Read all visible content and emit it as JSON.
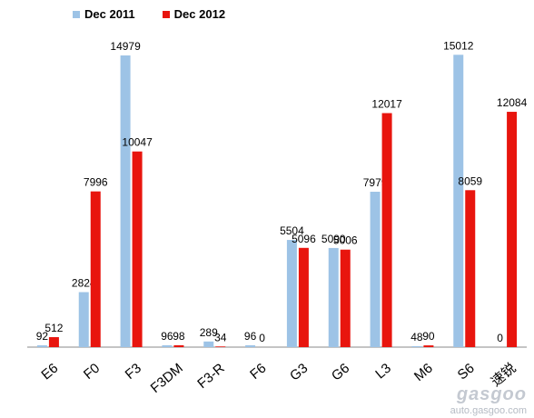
{
  "chart_data": {
    "type": "bar",
    "title": "",
    "xlabel": "",
    "ylabel": "",
    "ylim": [
      0,
      16000
    ],
    "grid": false,
    "legend_position": "top-left",
    "categories": [
      "E6",
      "F0",
      "F3",
      "F3DM",
      "F3-R",
      "F6",
      "G3",
      "G6",
      "L3",
      "M6",
      "S6",
      "速锐"
    ],
    "series": [
      {
        "name": "Dec  2011",
        "color": "#9dc3e6",
        "values": [
          92,
          2824,
          14979,
          96,
          289,
          96,
          5504,
          5090,
          7979,
          48,
          15012,
          0
        ],
        "labels": [
          "92",
          "2824",
          "14979",
          "96",
          "289",
          "96",
          "5504",
          "5090",
          "7979",
          "48",
          "15012",
          "0"
        ]
      },
      {
        "name": "Dec  2012",
        "color": "#e8150e",
        "values": [
          512,
          7996,
          10047,
          98,
          34,
          0,
          5096,
          5006,
          12017,
          90,
          8059,
          12084
        ],
        "labels": [
          "512",
          "7996",
          "10047",
          "98",
          "34",
          "0",
          "5096",
          "5006",
          "12017",
          "90",
          "8059",
          "12084"
        ]
      }
    ]
  },
  "watermark": {
    "logo": "gasgoo",
    "url": "auto.gasgoo.com"
  }
}
